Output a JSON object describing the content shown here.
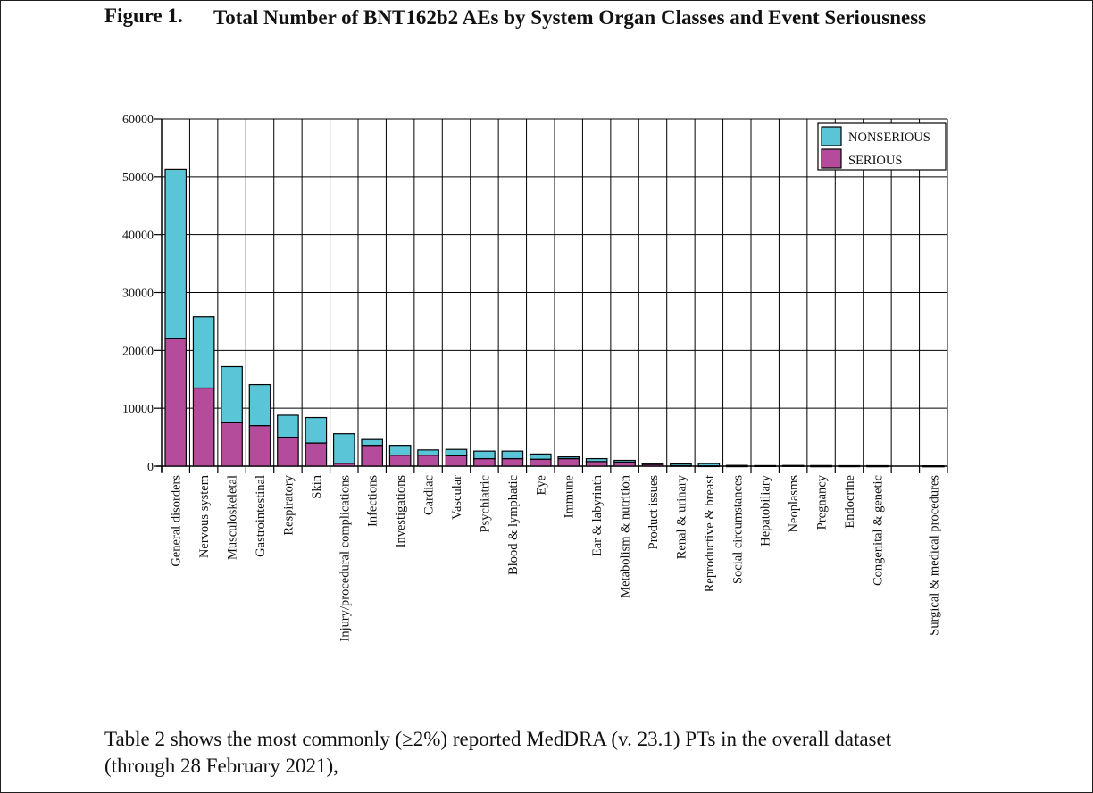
{
  "figure": {
    "label": "Figure 1.",
    "title": "Total Number of BNT162b2 AEs by System Organ Classes and Event Seriousness"
  },
  "body_text": "Table 2 shows the most commonly (≥2%) reported MedDRA (v. 23.1) PTs in the overall dataset (through 28 February 2021),",
  "colors": {
    "nonserious": "#5bc5d8",
    "serious": "#b54c9b",
    "outline": "#000000"
  },
  "chart_data": {
    "type": "bar",
    "stacked": true,
    "title": "Total Number of BNT162b2 AEs by System Organ Classes and Event Seriousness",
    "xlabel": "",
    "ylabel": "",
    "ylim": [
      0,
      60000
    ],
    "yticks": [
      0,
      10000,
      20000,
      30000,
      40000,
      50000,
      60000
    ],
    "grid": true,
    "legend_position": "top-right",
    "categories": [
      "General disorders",
      "Nervous system",
      "Musculoskeletal",
      "Gastrointestinal",
      "Respiratory",
      "Skin",
      "Injury/procedural complications",
      "Infections",
      "Investigations",
      "Cardiac",
      "Vascular",
      "Psychiatric",
      "Blood & lymphatic",
      "Eye",
      "Immune",
      "Ear & labyrinth",
      "Metabolism & nutrition",
      "Product issues",
      "Renal & urinary",
      "Reproductive & breast",
      "Social circumstances",
      "Hepatobiliary",
      "Neoplasms",
      "Pregnancy",
      "Endocrine",
      "Congenital & genetic",
      "",
      "Surgical & medical procedures"
    ],
    "series": [
      {
        "name": "SERIOUS",
        "values": [
          22000,
          13500,
          7500,
          7000,
          5000,
          4000,
          500,
          3600,
          1900,
          1900,
          1800,
          1300,
          1300,
          1200,
          1300,
          800,
          700,
          300,
          100,
          50,
          30,
          60,
          80,
          20,
          30,
          20,
          0,
          10
        ]
      },
      {
        "name": "NONSERIOUS",
        "values": [
          29300,
          12300,
          9700,
          7100,
          3800,
          4400,
          5100,
          1000,
          1700,
          900,
          1100,
          1300,
          1300,
          900,
          300,
          500,
          300,
          200,
          300,
          400,
          100,
          30,
          30,
          80,
          50,
          60,
          0,
          40
        ]
      }
    ]
  }
}
